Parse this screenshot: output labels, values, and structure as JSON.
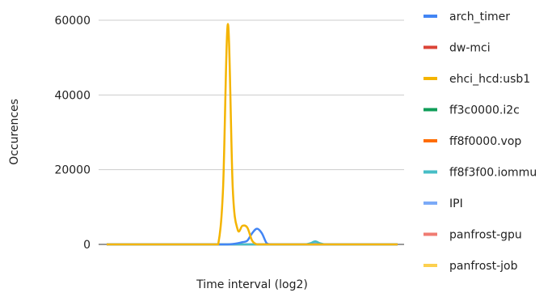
{
  "chart_data": {
    "type": "line",
    "title": "",
    "xlabel": "Time interval (log2)",
    "ylabel": "Occurences",
    "ylim": [
      0,
      60000
    ],
    "yticks": [
      0,
      20000,
      40000,
      60000
    ],
    "ytick_labels": [
      "0",
      "20000",
      "40000",
      "60000"
    ],
    "grid": true,
    "legend_position": "right",
    "x": [
      0,
      1,
      2,
      3,
      4,
      5,
      6,
      7,
      8,
      9,
      10,
      11,
      12,
      13,
      14,
      15,
      16,
      17,
      18,
      19,
      20,
      21,
      22,
      23,
      24,
      25,
      26,
      27,
      28,
      29,
      30,
      31,
      32,
      33,
      34,
      35,
      36,
      37,
      38,
      39,
      40,
      41,
      42,
      43,
      44,
      45,
      46,
      47,
      48,
      49,
      50,
      51,
      52,
      53,
      54,
      55,
      56,
      57,
      58,
      59,
      60
    ],
    "series": [
      {
        "name": "arch_timer",
        "color": "#4285f4",
        "values": [
          0,
          0,
          0,
          0,
          0,
          0,
          0,
          0,
          0,
          0,
          0,
          0,
          0,
          0,
          0,
          0,
          0,
          0,
          0,
          0,
          0,
          0,
          0,
          0,
          0,
          0,
          100,
          300,
          600,
          1000,
          3000,
          4200,
          3000,
          300,
          0,
          0,
          0,
          0,
          0,
          0,
          0,
          0,
          0,
          0,
          0,
          0,
          0,
          0,
          0,
          0,
          0,
          0,
          0,
          0,
          0,
          0,
          0,
          0,
          0,
          0,
          0
        ]
      },
      {
        "name": "dw-mci",
        "color": "#db4437",
        "values": [
          0,
          0,
          0,
          0,
          0,
          0,
          0,
          0,
          0,
          0,
          0,
          0,
          0,
          0,
          0,
          0,
          0,
          0,
          0,
          0,
          0,
          0,
          0,
          0,
          0,
          0,
          0,
          0,
          0,
          0,
          0,
          0,
          0,
          0,
          0,
          0,
          0,
          0,
          0,
          0,
          0,
          0,
          0,
          0,
          0,
          0,
          0,
          0,
          0,
          0,
          0,
          0,
          0,
          0,
          0,
          0,
          0,
          0,
          0,
          0,
          0
        ]
      },
      {
        "name": "ehci_hcd:usb1",
        "color": "#f4b400",
        "values": [
          0,
          0,
          0,
          0,
          0,
          0,
          0,
          0,
          0,
          0,
          0,
          0,
          0,
          0,
          0,
          0,
          0,
          0,
          0,
          0,
          0,
          0,
          0,
          0,
          15000,
          59000,
          15000,
          4000,
          5000,
          4500,
          1000,
          0,
          0,
          0,
          0,
          0,
          0,
          0,
          0,
          0,
          0,
          0,
          0,
          0,
          0,
          0,
          0,
          0,
          0,
          0,
          0,
          0,
          0,
          0,
          0,
          0,
          0,
          0,
          0,
          0,
          0
        ]
      },
      {
        "name": "ff3c0000.i2c",
        "color": "#0f9d58",
        "values": [
          0,
          0,
          0,
          0,
          0,
          0,
          0,
          0,
          0,
          0,
          0,
          0,
          0,
          0,
          0,
          0,
          0,
          0,
          0,
          0,
          0,
          0,
          0,
          0,
          0,
          0,
          0,
          0,
          0,
          0,
          0,
          0,
          0,
          0,
          0,
          0,
          0,
          0,
          0,
          0,
          0,
          0,
          0,
          0,
          0,
          0,
          0,
          0,
          0,
          0,
          0,
          0,
          0,
          0,
          0,
          0,
          0,
          0,
          0,
          0,
          0
        ]
      },
      {
        "name": "ff8f0000.vop",
        "color": "#ff6d00",
        "values": [
          0,
          0,
          0,
          0,
          0,
          0,
          0,
          0,
          0,
          0,
          0,
          0,
          0,
          0,
          0,
          0,
          0,
          0,
          0,
          0,
          0,
          0,
          0,
          0,
          0,
          0,
          0,
          0,
          0,
          0,
          0,
          0,
          0,
          0,
          0,
          0,
          0,
          0,
          0,
          0,
          0,
          0,
          0,
          0,
          0,
          0,
          0,
          0,
          0,
          0,
          0,
          0,
          0,
          0,
          0,
          0,
          0,
          0,
          0,
          0,
          0
        ]
      },
      {
        "name": "ff8f3f00.iommu",
        "color": "#46bdc6",
        "values": [
          0,
          0,
          0,
          0,
          0,
          0,
          0,
          0,
          0,
          0,
          0,
          0,
          0,
          0,
          0,
          0,
          0,
          0,
          0,
          0,
          0,
          0,
          0,
          0,
          0,
          0,
          0,
          0,
          0,
          0,
          0,
          0,
          0,
          0,
          0,
          0,
          0,
          0,
          0,
          0,
          0,
          0,
          300,
          800,
          300,
          0,
          0,
          0,
          0,
          0,
          0,
          0,
          0,
          0,
          0,
          0,
          0,
          0,
          0,
          0,
          0
        ]
      },
      {
        "name": "IPI",
        "color": "#7baaf7",
        "values": [
          0,
          0,
          0,
          0,
          0,
          0,
          0,
          0,
          0,
          0,
          0,
          0,
          0,
          0,
          0,
          0,
          0,
          0,
          0,
          0,
          0,
          0,
          0,
          0,
          0,
          0,
          0,
          0,
          0,
          0,
          0,
          0,
          0,
          0,
          0,
          0,
          0,
          0,
          0,
          0,
          0,
          0,
          100,
          300,
          100,
          0,
          0,
          0,
          0,
          0,
          0,
          0,
          0,
          0,
          0,
          0,
          0,
          0,
          0,
          0,
          0
        ]
      },
      {
        "name": "panfrost-gpu",
        "color": "#f07b72",
        "values": [
          0,
          0,
          0,
          0,
          0,
          0,
          0,
          0,
          0,
          0,
          0,
          0,
          0,
          0,
          0,
          0,
          0,
          0,
          0,
          0,
          0,
          0,
          0,
          0,
          0,
          0,
          0,
          0,
          0,
          0,
          0,
          0,
          0,
          0,
          0,
          0,
          0,
          0,
          0,
          0,
          0,
          0,
          0,
          0,
          0,
          0,
          0,
          0,
          0,
          0,
          0,
          0,
          0,
          0,
          0,
          0,
          0,
          0,
          0,
          0,
          0
        ]
      },
      {
        "name": "panfrost-job",
        "color": "#fcd04f",
        "values": [
          0,
          0,
          0,
          0,
          0,
          0,
          0,
          0,
          0,
          0,
          0,
          0,
          0,
          0,
          0,
          0,
          0,
          0,
          0,
          0,
          0,
          0,
          0,
          0,
          0,
          0,
          0,
          0,
          0,
          0,
          0,
          0,
          0,
          0,
          0,
          0,
          0,
          0,
          0,
          0,
          0,
          0,
          0,
          0,
          0,
          0,
          0,
          0,
          0,
          0,
          0,
          0,
          0,
          0,
          0,
          0,
          0,
          0,
          0,
          0,
          0
        ]
      }
    ]
  }
}
